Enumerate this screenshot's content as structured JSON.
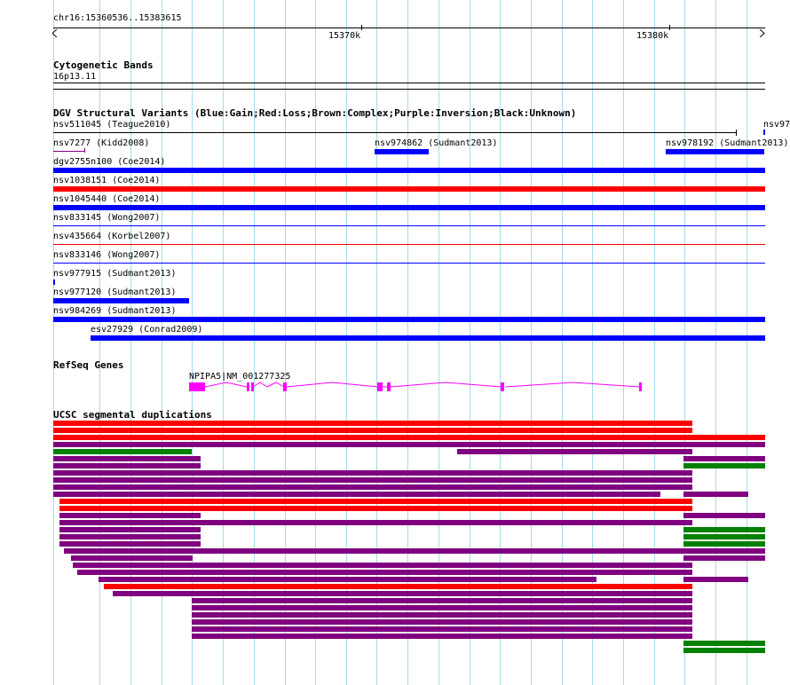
{
  "ruler": {
    "region": "chr16:15360536..15383615",
    "ticks": [
      "15370k",
      "15380k"
    ]
  },
  "tracks": {
    "cytoband": {
      "title": "Cytogenetic Bands",
      "band": "16p13.11"
    },
    "dgv": {
      "title": "DGV Structural Variants (Blue:Gain;Red:Loss;Brown:Complex;Purple:Inversion;Black:Unknown)",
      "colors": {
        "gain": "#0000ff",
        "loss": "#ff0000",
        "complex": "#8b4513",
        "inversion": "#800080",
        "unknown": "#000000"
      },
      "features": [
        {
          "label": "nsv511045 (Teague2010)",
          "type": "unknown"
        },
        {
          "label": "nsv97",
          "type": "gain"
        },
        {
          "label": "nsv7277 (Kidd2008)",
          "type": "inversion"
        },
        {
          "label": "nsv974862 (Sudmant2013)",
          "type": "gain"
        },
        {
          "label": "nsv978192 (Sudmant2013)",
          "type": "gain"
        },
        {
          "label": "dgv2755n100 (Coe2014)",
          "type": "gain"
        },
        {
          "label": "nsv1038151 (Coe2014)",
          "type": "loss"
        },
        {
          "label": "nsv1045440 (Coe2014)",
          "type": "gain"
        },
        {
          "label": "nsv833145 (Wong2007)",
          "type": "gain"
        },
        {
          "label": "nsv435664 (Korbel2007)",
          "type": "loss"
        },
        {
          "label": "nsv833146 (Wong2007)",
          "type": "gain"
        },
        {
          "label": "nsv977915 (Sudmant2013)",
          "type": "gain"
        },
        {
          "label": "nsv977120 (Sudmant2013)",
          "type": "gain"
        },
        {
          "label": "nsv984269 (Sudmant2013)",
          "type": "gain"
        },
        {
          "label": "esv27929 (Conrad2009)",
          "type": "gain"
        }
      ]
    },
    "refseq": {
      "title": "RefSeq Genes",
      "color": "#ff00ff",
      "gene_label": "NPIPA5|NM_001277325"
    },
    "segdup": {
      "title": "UCSC segmental duplications",
      "colors": {
        "red": "#ff0000",
        "purple": "#800080",
        "green": "#008000"
      }
    }
  }
}
